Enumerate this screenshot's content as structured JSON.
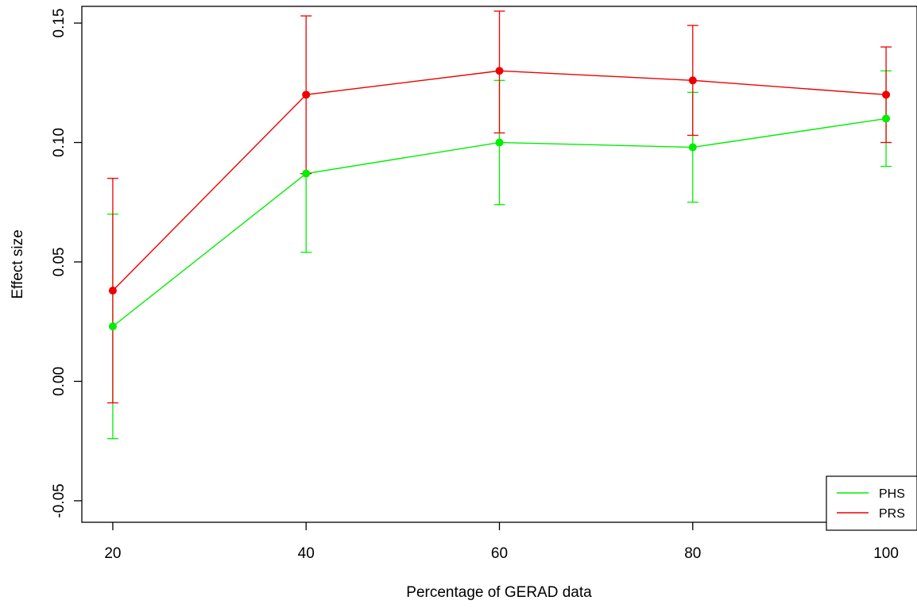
{
  "chart_data": {
    "type": "line",
    "title": "",
    "xlabel": "Percentage of GERAD data",
    "ylabel": "Effect size",
    "x": [
      20,
      40,
      60,
      80,
      100
    ],
    "x_ticks": [
      "20",
      "40",
      "60",
      "80",
      "100"
    ],
    "y_ticks": [
      "-0.05",
      "0.00",
      "0.05",
      "0.10",
      "0.15"
    ],
    "y_tick_values": [
      -0.05,
      0.0,
      0.05,
      0.1,
      0.15
    ],
    "xlim": [
      16.8,
      103.2
    ],
    "ylim": [
      -0.059,
      0.157
    ],
    "grid": false,
    "legend_position": "bottom-right",
    "series": [
      {
        "name": "PHS",
        "color": "#00ee00",
        "values": [
          0.023,
          0.087,
          0.1,
          0.098,
          0.11
        ],
        "lower": [
          -0.024,
          0.054,
          0.074,
          0.075,
          0.09
        ],
        "upper": [
          0.07,
          0.087,
          0.126,
          0.121,
          0.13
        ]
      },
      {
        "name": "PRS",
        "color": "#ee0000",
        "values": [
          0.038,
          0.12,
          0.13,
          0.126,
          0.12
        ],
        "lower": [
          -0.009,
          0.087,
          0.104,
          0.103,
          0.1
        ],
        "upper": [
          0.085,
          0.153,
          0.155,
          0.149,
          0.14
        ]
      }
    ]
  }
}
